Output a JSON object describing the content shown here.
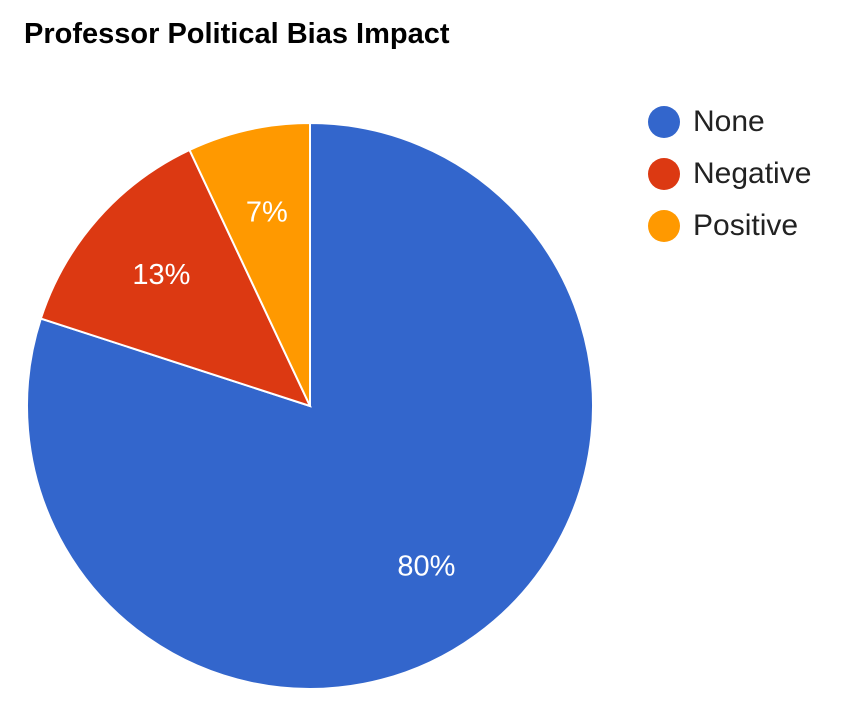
{
  "chart_data": {
    "type": "pie",
    "title": "Professor Political Bias Impact",
    "categories": [
      "None",
      "Negative",
      "Positive"
    ],
    "values": [
      80,
      13,
      7
    ],
    "labels": [
      "80%",
      "13%",
      "7%"
    ],
    "colors": [
      "#3366cc",
      "#dc3912",
      "#ff9900"
    ],
    "legend_position": "right"
  }
}
